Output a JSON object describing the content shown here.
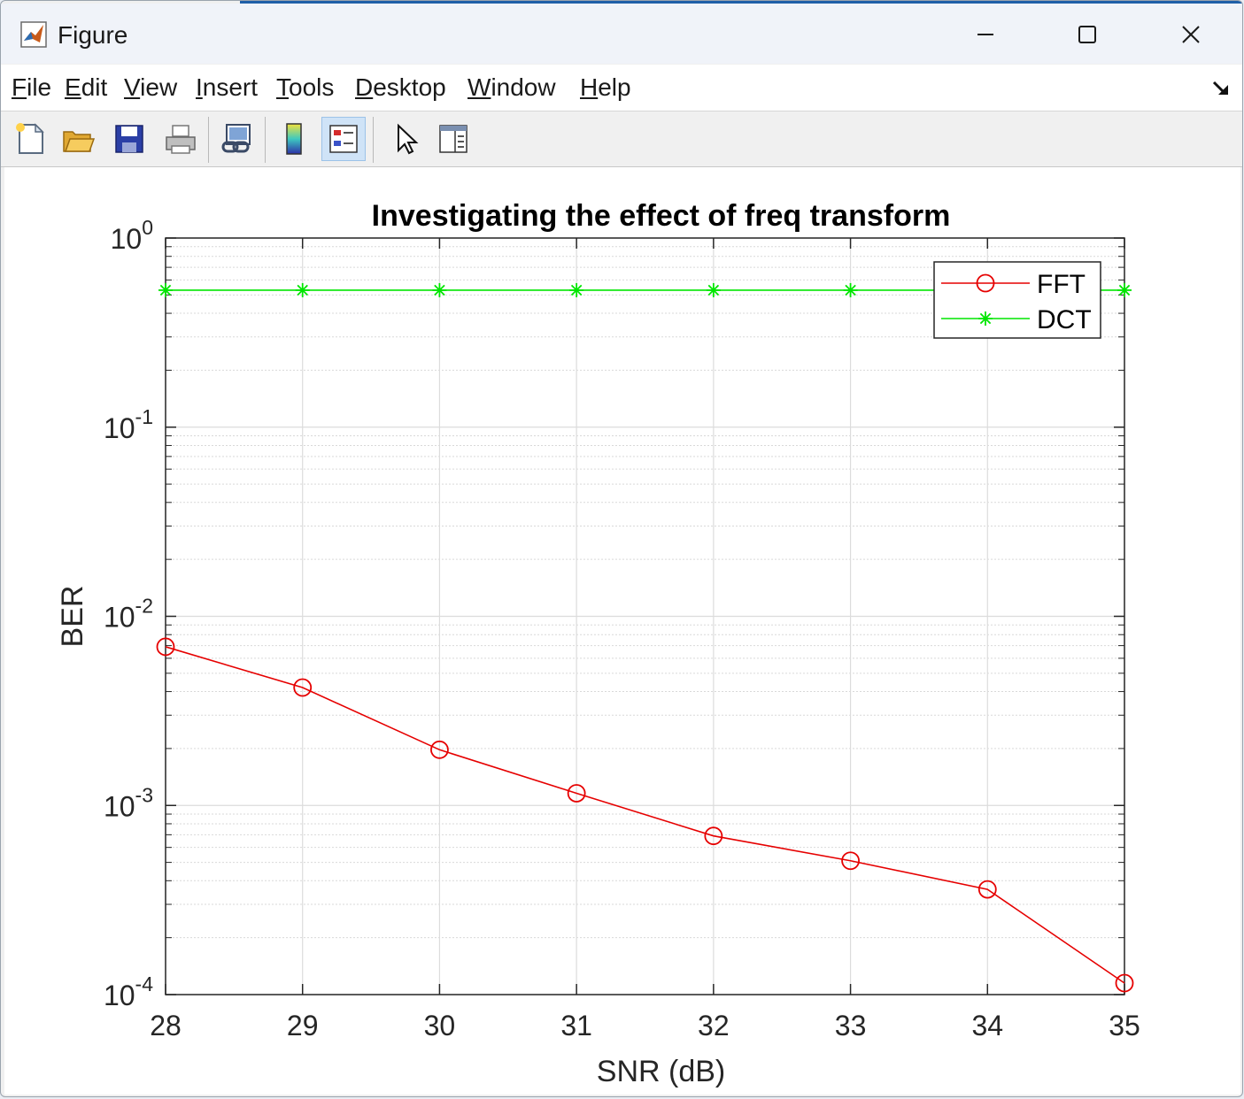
{
  "window": {
    "title": "Figure"
  },
  "menu": [
    {
      "label": "File",
      "key": "F",
      "rest": "ile"
    },
    {
      "label": "Edit",
      "key": "E",
      "rest": "dit"
    },
    {
      "label": "View",
      "key": "V",
      "rest": "iew"
    },
    {
      "label": "Insert",
      "key": "I",
      "rest": "nsert"
    },
    {
      "label": "Tools",
      "key": "T",
      "rest": "ools"
    },
    {
      "label": "Desktop",
      "key": "D",
      "rest": "esktop"
    },
    {
      "label": "Window",
      "key": "W",
      "rest": "indow"
    },
    {
      "label": "Help",
      "key": "H",
      "rest": "elp"
    }
  ],
  "toolbar": {
    "buttons": [
      "new-figure-icon",
      "open-file-icon",
      "save-icon",
      "print-icon",
      "link-plot-icon",
      "colorbar-icon",
      "legend-icon",
      "pointer-icon",
      "property-editor-icon"
    ],
    "active": "legend-icon"
  },
  "colors": {
    "fft": "#e60000",
    "dct": "#00e600"
  },
  "chart_data": {
    "type": "line",
    "title": "Investigating the effect of freq transform",
    "xlabel": "SNR (dB)",
    "ylabel": "BER",
    "yscale": "log",
    "xlim": [
      28,
      35
    ],
    "ylim": [
      0.0001,
      1
    ],
    "xticks": [
      "28",
      "29",
      "30",
      "31",
      "32",
      "33",
      "34",
      "35"
    ],
    "yticks": [
      {
        "base": "10",
        "exp": "-4"
      },
      {
        "base": "10",
        "exp": "-3"
      },
      {
        "base": "10",
        "exp": "-2"
      },
      {
        "base": "10",
        "exp": "-1"
      },
      {
        "base": "10",
        "exp": "0"
      }
    ],
    "grid": true,
    "legend_position": "top-right",
    "x": [
      28,
      29,
      30,
      31,
      32,
      33,
      34,
      35
    ],
    "series": [
      {
        "name": "FFT",
        "marker": "circle",
        "color": "#e60000",
        "values": [
          0.0069,
          0.0042,
          0.00197,
          0.00116,
          0.00069,
          0.00051,
          0.00036,
          0.000115
        ]
      },
      {
        "name": "DCT",
        "marker": "asterisk",
        "color": "#00e600",
        "values": [
          0.53,
          0.53,
          0.53,
          0.53,
          0.53,
          0.53,
          0.53,
          0.53
        ]
      }
    ]
  }
}
